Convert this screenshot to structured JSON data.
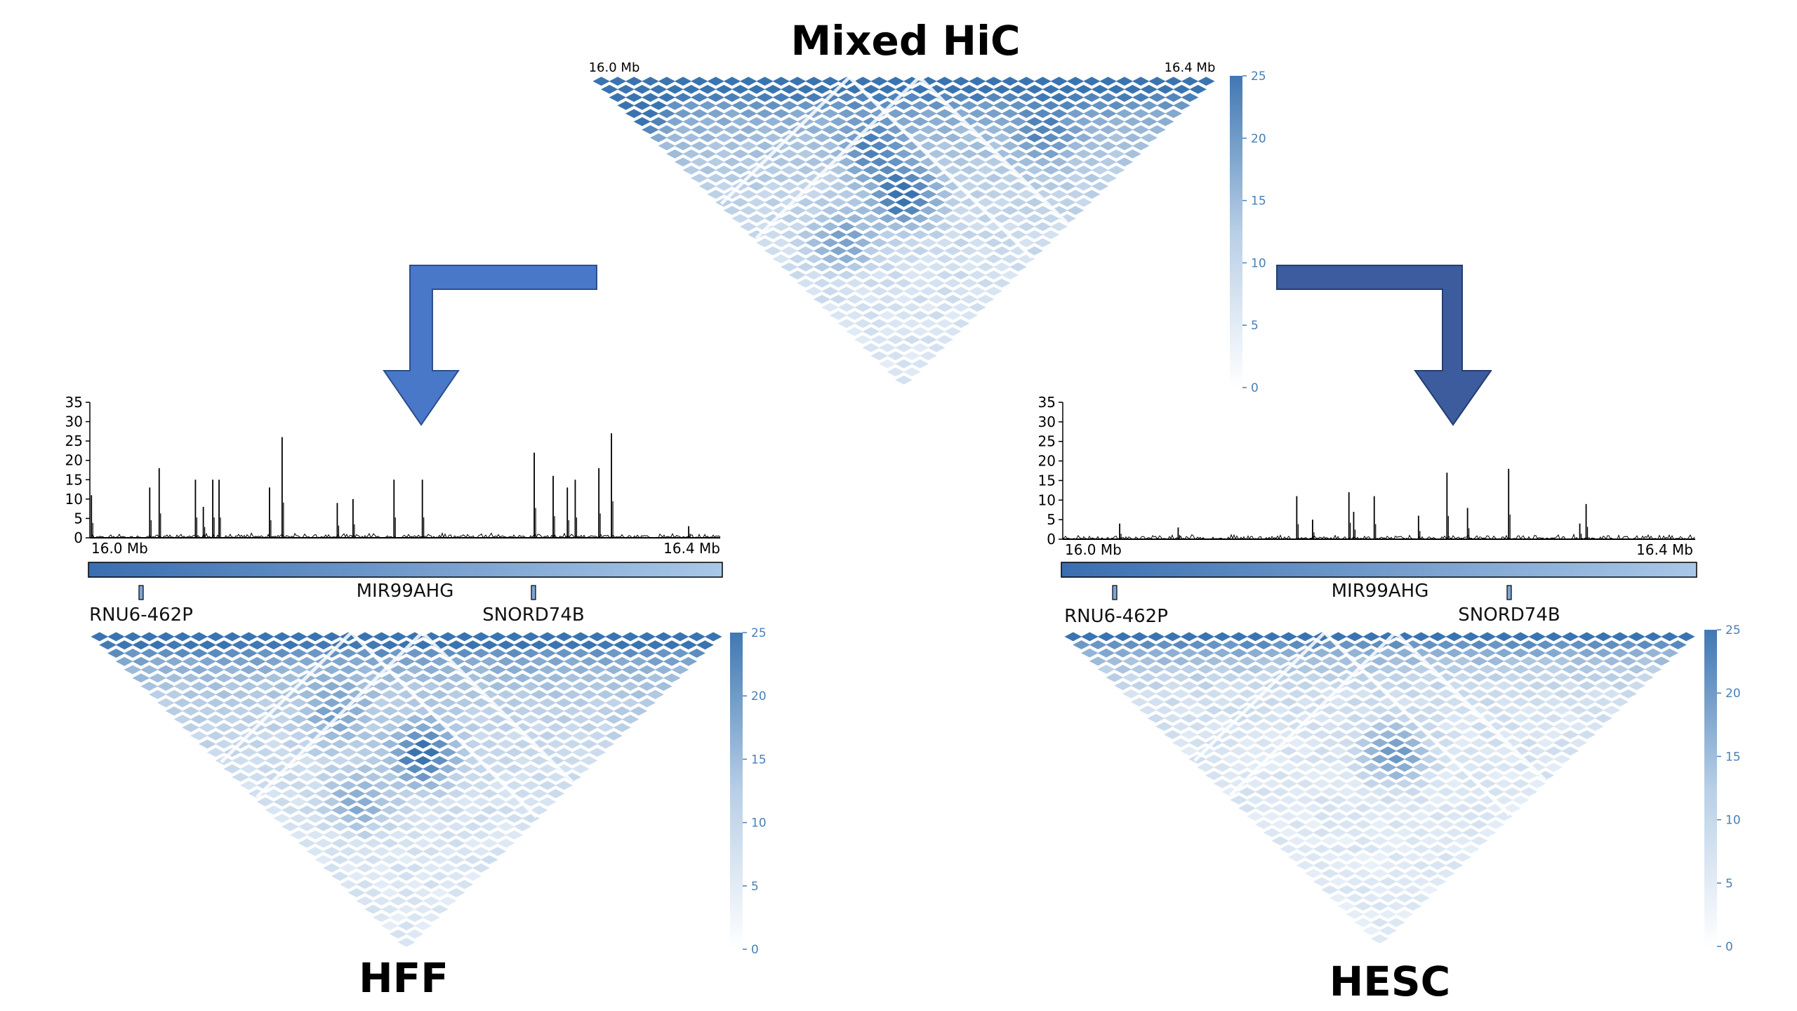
{
  "figure": {
    "top_panel": {
      "title": "Mixed HiC",
      "coord_left": "16.0 Mb",
      "coord_right": "16.4 Mb",
      "colorbar_ticks": [
        "0",
        "5",
        "10",
        "15",
        "20",
        "25"
      ]
    },
    "left_panel": {
      "label": "HFF",
      "coord_left": "16.0 Mb",
      "coord_right": "16.4 Mb",
      "signal_yticks": [
        "0",
        "5",
        "10",
        "15",
        "20",
        "25",
        "30",
        "35"
      ],
      "genes": {
        "main": "MIR99AHG",
        "left": "RNU6-462P",
        "right": "SNORD74B"
      },
      "colorbar_ticks": [
        "0",
        "5",
        "10",
        "15",
        "20",
        "25"
      ]
    },
    "right_panel": {
      "label": "HESC",
      "coord_left": "16.0 Mb",
      "coord_right": "16.4 Mb",
      "signal_yticks": [
        "0",
        "5",
        "10",
        "15",
        "20",
        "25",
        "30",
        "35"
      ],
      "genes": {
        "main": "MIR99AHG",
        "left": "RNU6-462P",
        "right": "SNORD74B"
      },
      "colorbar_ticks": [
        "0",
        "5",
        "10",
        "15",
        "20",
        "25"
      ]
    },
    "colors": {
      "heatmap_dark": "#3a74b0",
      "heatmap_light": "#eef4fb",
      "arrow_left": "#4a78c8",
      "arrow_right": "#3c5c9e",
      "gene_bar_start": "#3a6eb0",
      "gene_bar_end": "#a9c8e8"
    }
  },
  "chart_data": [
    {
      "type": "heatmap",
      "title": "Mixed HiC",
      "x_range_mb": [
        16.0,
        16.4
      ],
      "color_range": [
        0,
        25
      ],
      "hotspots": [
        {
          "a_mb": 16.0,
          "b_mb": 16.05,
          "intensity": 0.55
        },
        {
          "a_mb": 16.13,
          "b_mb": 16.22,
          "intensity": 0.6
        },
        {
          "a_mb": 16.12,
          "b_mb": 16.27,
          "intensity": 1.0
        },
        {
          "a_mb": 16.05,
          "b_mb": 16.26,
          "intensity": 0.55
        },
        {
          "a_mb": 16.25,
          "b_mb": 16.32,
          "intensity": 0.5
        }
      ]
    },
    {
      "type": "line",
      "title": "HFF",
      "x_range_mb": [
        16.0,
        16.4
      ],
      "ylim": [
        0,
        35
      ],
      "peaks": [
        {
          "x_mb": 16.001,
          "y": 11
        },
        {
          "x_mb": 16.038,
          "y": 13
        },
        {
          "x_mb": 16.044,
          "y": 18
        },
        {
          "x_mb": 16.067,
          "y": 15
        },
        {
          "x_mb": 16.072,
          "y": 8
        },
        {
          "x_mb": 16.078,
          "y": 15
        },
        {
          "x_mb": 16.082,
          "y": 15
        },
        {
          "x_mb": 16.114,
          "y": 13
        },
        {
          "x_mb": 16.122,
          "y": 26
        },
        {
          "x_mb": 16.157,
          "y": 9
        },
        {
          "x_mb": 16.167,
          "y": 10
        },
        {
          "x_mb": 16.193,
          "y": 15
        },
        {
          "x_mb": 16.211,
          "y": 15
        },
        {
          "x_mb": 16.282,
          "y": 22
        },
        {
          "x_mb": 16.294,
          "y": 16
        },
        {
          "x_mb": 16.303,
          "y": 13
        },
        {
          "x_mb": 16.308,
          "y": 15
        },
        {
          "x_mb": 16.323,
          "y": 18
        },
        {
          "x_mb": 16.331,
          "y": 27
        },
        {
          "x_mb": 16.38,
          "y": 3
        }
      ]
    },
    {
      "type": "line",
      "title": "HESC",
      "x_range_mb": [
        16.0,
        16.4
      ],
      "ylim": [
        0,
        35
      ],
      "peaks": [
        {
          "x_mb": 16.036,
          "y": 4
        },
        {
          "x_mb": 16.073,
          "y": 3
        },
        {
          "x_mb": 16.148,
          "y": 11
        },
        {
          "x_mb": 16.158,
          "y": 5
        },
        {
          "x_mb": 16.181,
          "y": 12
        },
        {
          "x_mb": 16.184,
          "y": 7
        },
        {
          "x_mb": 16.197,
          "y": 11
        },
        {
          "x_mb": 16.225,
          "y": 6
        },
        {
          "x_mb": 16.243,
          "y": 17
        },
        {
          "x_mb": 16.256,
          "y": 8
        },
        {
          "x_mb": 16.282,
          "y": 18
        },
        {
          "x_mb": 16.327,
          "y": 4
        },
        {
          "x_mb": 16.331,
          "y": 9
        }
      ]
    },
    {
      "type": "heatmap",
      "title": "HFF",
      "x_range_mb": [
        16.0,
        16.4
      ],
      "color_range": [
        0,
        25
      ],
      "hotspots": [
        {
          "a_mb": 16.13,
          "b_mb": 16.28,
          "intensity": 1.0
        },
        {
          "a_mb": 16.06,
          "b_mb": 16.27,
          "intensity": 0.5
        },
        {
          "a_mb": 16.1,
          "b_mb": 16.2,
          "intensity": 0.45
        }
      ]
    },
    {
      "type": "heatmap",
      "title": "HESC",
      "x_range_mb": [
        16.0,
        16.4
      ],
      "color_range": [
        0,
        25
      ],
      "hotspots": [
        {
          "a_mb": 16.13,
          "b_mb": 16.28,
          "intensity": 0.7
        }
      ]
    }
  ]
}
